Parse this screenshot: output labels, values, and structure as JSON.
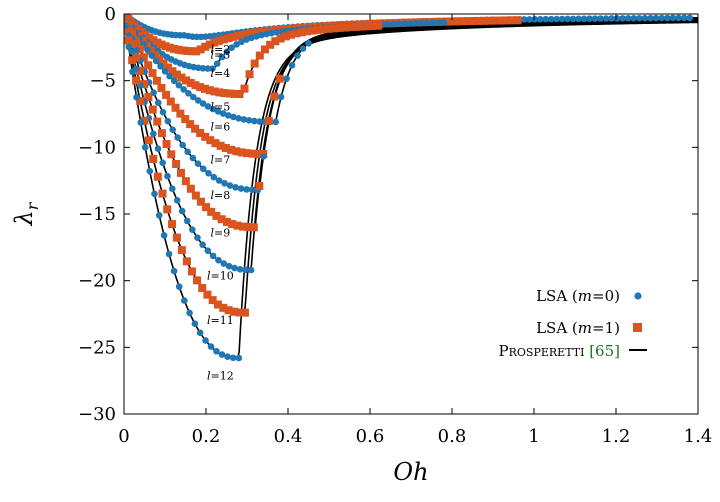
{
  "chart_data": {
    "type": "line",
    "xlabel": "Oh",
    "ylabel": "λ_r",
    "xlim": [
      0,
      1.4
    ],
    "ylim": [
      -30,
      0
    ],
    "x_ticks": [
      "0",
      "0.2",
      "0.4",
      "0.6",
      "0.8",
      "1",
      "1.2",
      "1.4"
    ],
    "y_ticks": [
      "0",
      "−5",
      "−10",
      "−15",
      "−20",
      "−25",
      "−30"
    ],
    "mode_labels": [
      "l=2",
      "l=3",
      "l=4",
      "l=5",
      "l=6",
      "l=7",
      "l=8",
      "l=9",
      "l=10",
      "l=11",
      "l=12"
    ],
    "legend": {
      "position": "bottom-right",
      "entries": [
        {
          "label": "LSA (m=0)",
          "marker": "circle",
          "color": "#1f77b4"
        },
        {
          "label": "LSA (m=1)",
          "marker": "square",
          "color": "#d9541e"
        },
        {
          "label": "Prosperetti",
          "cite": "[65]",
          "marker": "line",
          "color": "#000000"
        }
      ]
    },
    "series": [
      {
        "l": 2,
        "min_oh": 0.15,
        "min_lambda": -1.6,
        "lsa_m0_end": 1.38,
        "lsa_m1_end": null
      },
      {
        "l": 3,
        "min_oh": 0.18,
        "min_lambda": -2.8,
        "lsa_m0_end": null,
        "lsa_m1_end": 0.96
      },
      {
        "l": 4,
        "min_oh": 0.22,
        "min_lambda": -4.1,
        "lsa_m0_end": 0.78,
        "lsa_m1_end": null
      },
      {
        "l": 5,
        "min_oh": 0.29,
        "min_lambda": -6.0,
        "lsa_m0_end": null,
        "lsa_m1_end": 0.62
      },
      {
        "l": 6,
        "min_oh": 0.37,
        "min_lambda": -8.1,
        "lsa_m0_end": 0.45,
        "lsa_m1_end": null
      },
      {
        "l": 7,
        "min_oh": 0.34,
        "min_lambda": -10.5,
        "lsa_m0_end": null,
        "lsa_m1_end": 0.38
      },
      {
        "l": 8,
        "min_oh": 0.33,
        "min_lambda": -13.2,
        "lsa_m0_end": 0.34,
        "lsa_m1_end": null
      },
      {
        "l": 9,
        "min_oh": 0.32,
        "min_lambda": -16.0,
        "lsa_m0_end": null,
        "lsa_m1_end": 0.33
      },
      {
        "l": 10,
        "min_oh": 0.31,
        "min_lambda": -19.2,
        "lsa_m0_end": 0.31,
        "lsa_m1_end": null
      },
      {
        "l": 11,
        "min_oh": 0.295,
        "min_lambda": -22.4,
        "lsa_m0_end": null,
        "lsa_m1_end": 0.295
      },
      {
        "l": 12,
        "min_oh": 0.28,
        "min_lambda": -25.8,
        "lsa_m0_end": 0.28,
        "lsa_m1_end": null
      }
    ]
  }
}
